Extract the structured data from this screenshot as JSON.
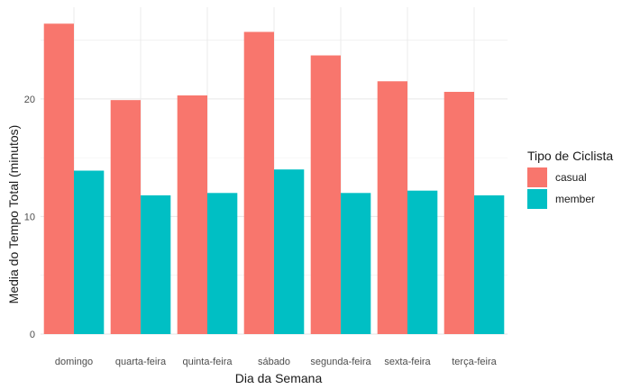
{
  "chart_data": {
    "type": "bar",
    "xlabel": "Dia da Semana",
    "ylabel": "Media do Tempo Total (minutos)",
    "categories": [
      "domingo",
      "quarta-feira",
      "quinta-feira",
      "sábado",
      "segunda-feira",
      "sexta-feira",
      "terça-feira"
    ],
    "series": [
      {
        "name": "casual",
        "color": "#F8766D",
        "values": [
          26.4,
          19.9,
          20.3,
          25.7,
          23.7,
          21.5,
          20.6
        ]
      },
      {
        "name": "member",
        "color": "#00BFC4",
        "values": [
          13.9,
          11.8,
          12.0,
          14.0,
          12.0,
          12.2,
          11.8
        ]
      }
    ],
    "ylim": [
      0,
      27.8
    ],
    "yticks": [
      0,
      10,
      20
    ],
    "grid": true,
    "legend": {
      "title": "Tipo de Ciclista",
      "position": "right"
    }
  }
}
